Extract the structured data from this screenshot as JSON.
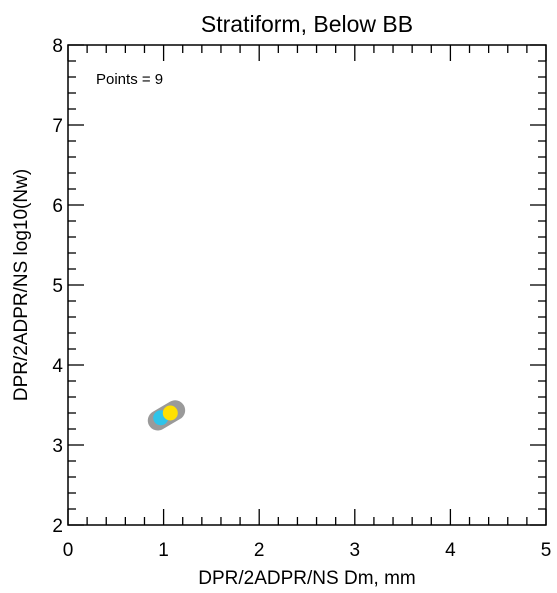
{
  "chart_data": {
    "type": "scatter",
    "title": "Stratiform, Below BB",
    "xlabel": "DPR/2ADPR/NS Dm, mm",
    "ylabel": "DPR/2ADPR/NS log10(Nw)",
    "xlim": [
      0,
      5
    ],
    "ylim": [
      2,
      8
    ],
    "x_ticks": [
      "0",
      "1",
      "2",
      "3",
      "4",
      "5"
    ],
    "y_ticks": [
      "2",
      "3",
      "4",
      "5",
      "6",
      "7",
      "8"
    ],
    "annotation": "Points = 9",
    "grid": false,
    "density_regions": [
      {
        "level": "outer",
        "color": "#9a9a9a",
        "x_range": [
          0.93,
          1.13
        ],
        "y_range": [
          3.3,
          3.44
        ]
      },
      {
        "level": "low",
        "color": "#2ec4ea",
        "x": 0.97,
        "y": 3.34
      },
      {
        "level": "high",
        "color": "#ffe000",
        "x": 1.07,
        "y": 3.4
      }
    ]
  }
}
